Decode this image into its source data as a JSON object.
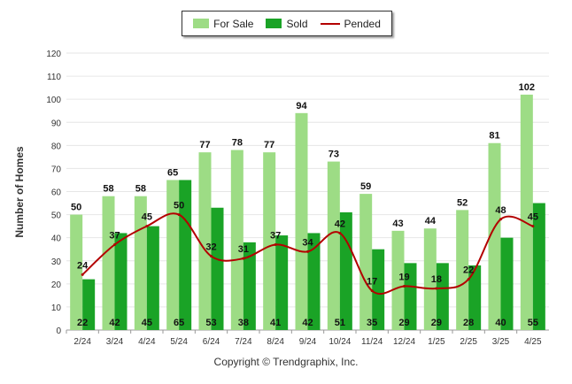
{
  "legend": {
    "items": [
      {
        "label": "For Sale",
        "color": "#9ddc85"
      },
      {
        "label": "Sold",
        "color": "#1aa326"
      },
      {
        "label": "Pended",
        "color": "#b30000"
      }
    ]
  },
  "copyright": "Copyright © Trendgraphix, Inc.",
  "chart_data": {
    "type": "bar",
    "title": "",
    "xlabel": "",
    "ylabel": "Number of Homes",
    "ylim": [
      0,
      120
    ],
    "yticks": [
      0,
      10,
      20,
      30,
      40,
      50,
      60,
      70,
      80,
      90,
      100,
      110,
      120
    ],
    "grid": true,
    "legend_position": "top-center",
    "categories": [
      "2/24",
      "3/24",
      "4/24",
      "5/24",
      "6/24",
      "7/24",
      "8/24",
      "9/24",
      "10/24",
      "11/24",
      "12/24",
      "1/25",
      "2/25",
      "3/25",
      "4/25"
    ],
    "series": [
      {
        "name": "For Sale",
        "type": "bar",
        "color": "#9ddc85",
        "values": [
          50,
          58,
          58,
          65,
          77,
          78,
          77,
          94,
          73,
          59,
          43,
          44,
          52,
          81,
          102
        ]
      },
      {
        "name": "Sold",
        "type": "bar",
        "color": "#1aa326",
        "values": [
          22,
          42,
          45,
          65,
          53,
          38,
          41,
          42,
          51,
          35,
          29,
          29,
          28,
          40,
          55
        ]
      },
      {
        "name": "Pended",
        "type": "line",
        "color": "#b30000",
        "values": [
          24,
          37,
          45,
          50,
          32,
          31,
          37,
          34,
          42,
          17,
          19,
          18,
          22,
          48,
          45
        ]
      }
    ]
  }
}
